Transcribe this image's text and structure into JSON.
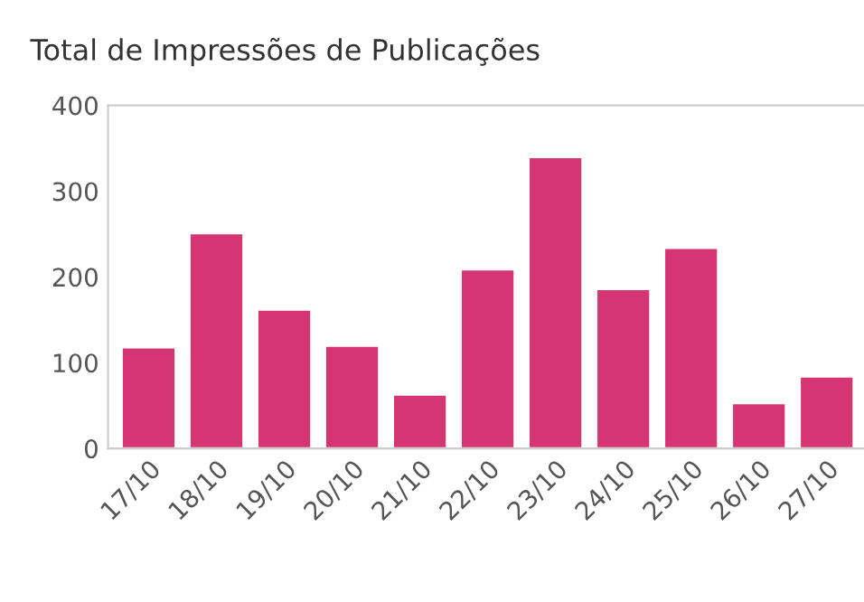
{
  "chart_data": {
    "type": "bar",
    "title": "Total de Impressões de Publicações",
    "categories": [
      "17/10",
      "18/10",
      "19/10",
      "20/10",
      "21/10",
      "22/10",
      "23/10",
      "24/10",
      "25/10",
      "26/10",
      "27/10"
    ],
    "values": [
      118,
      251,
      162,
      120,
      63,
      209,
      340,
      186,
      234,
      53,
      84
    ],
    "color": "#d63574",
    "ylim": [
      0,
      400
    ],
    "yticks": [
      0,
      100,
      200,
      300,
      400
    ],
    "grid": false
  }
}
